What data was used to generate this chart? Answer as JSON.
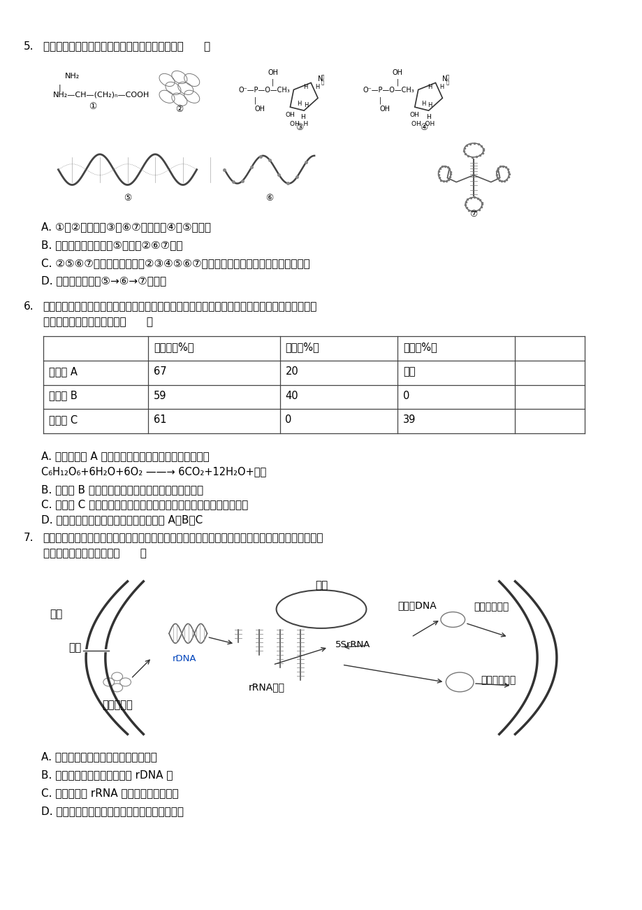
{
  "bg_color": "#ffffff",
  "page_width": 9.2,
  "page_height": 13.02,
  "font_color": "#000000",
  "q5_options": [
    "A. ①是②的单体，③是⑥⑦的单体，④是⑤的单体",
    "B. 同一生物不同细胞中⑤相同，②⑥⑦不同",
    "C. ②⑤⑥⑦属于生物大分子，②③④⑤⑥⑦可以存在于叶绿体、线粒体、细胞核中",
    "D. 细胞中只能发生⑤→⑥→⑦的过程"
  ],
  "q6_text1": "将某植物细胞各部分结构用差速离心法分离后，取其中三种细胞器测定它们有机物的含量如下表所",
  "q6_text2": "示．以下有关说法正确的是（      ）",
  "table_headers": [
    "",
    "蛋白质（%）",
    "脂质（%）",
    "核酸（%）"
  ],
  "table_rows": [
    [
      "细胞器 A",
      "67",
      "20",
      "微量"
    ],
    [
      "细胞器 B",
      "59",
      "40",
      "0"
    ],
    [
      "细胞器 C",
      "61",
      "0",
      "39"
    ]
  ],
  "q6_optA": "A. 如果细胞器 A 是线粒体，其中能完成的生理过程是：",
  "q6_optA_formula": "C₆H₁₂O₆+6H₂O+6O₂ ——→ 6CO₂+12H₂O+能量",
  "q6_optB": "B. 细胞器 B 只含有蛋白质和脂质，说明其具有膜结构",
  "q6_optC": "C. 细胞器 C 中进行的生理过程有水产生，产生的水中的氢来自于氨基",
  "q6_optD": "D. 蓝藻细胞和该细胞相比较，没有细胞器 A、B、C",
  "q7_text1": "完整的核糖体由大、小两个亚基组成。如图为真核细胞核糖体大、小亚基的合成、装配及运输过程示",
  "q7_text2": "意图，相关叙述正确的是（      ）",
  "q7_optA": "A. 如图所示过程可发生在有丝分裂中期",
  "q7_optB": "B. 细胞的遗传信息主要储存于 rDNA 中",
  "q7_optC": "C. 核仁是合成 rRNA 和核糖体蛋白的场所",
  "q7_optD": "D. 核糖体亚基在细胞核中装配完成后由核孔运出"
}
